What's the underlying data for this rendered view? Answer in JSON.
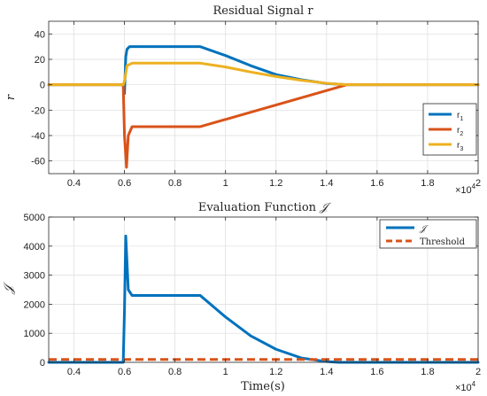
{
  "chart_data": [
    {
      "type": "line",
      "title": "Residual Signal r",
      "xlabel": "",
      "ylabel": "r",
      "xlim": [
        3000,
        20000
      ],
      "ylim": [
        -70,
        50
      ],
      "x_tick_values": [
        4000,
        6000,
        8000,
        10000,
        12000,
        14000,
        16000,
        18000,
        20000
      ],
      "x_tick_labels": [
        "0.4",
        "0.6",
        "0.8",
        "1",
        "1.2",
        "1.4",
        "1.6",
        "1.8",
        "2"
      ],
      "x_exponent_label": "×10",
      "x_exponent_power": "4",
      "y_ticks": [
        -60,
        -40,
        -20,
        0,
        20,
        40
      ],
      "grid": true,
      "legend_position": "bottom-right",
      "series": [
        {
          "name": "r",
          "subscript": "1",
          "color": "#0072BD",
          "x": [
            3000,
            5950,
            6000,
            6050,
            6100,
            6200,
            6300,
            9000,
            10000,
            11000,
            12000,
            13000,
            14000,
            14800,
            15000,
            20000
          ],
          "y": [
            0,
            0,
            -7,
            22,
            28,
            30,
            30,
            30,
            23,
            15,
            8,
            4,
            1,
            0,
            0,
            0
          ]
        },
        {
          "name": "r",
          "subscript": "2",
          "color": "#D95319",
          "x": [
            3000,
            5950,
            6000,
            6080,
            6150,
            6300,
            9000,
            14800,
            15000,
            20000
          ],
          "y": [
            0,
            0,
            -40,
            -65,
            -40,
            -33,
            -33,
            0,
            0,
            0
          ]
        },
        {
          "name": "r",
          "subscript": "3",
          "color": "#EDB120",
          "x": [
            3000,
            5950,
            6000,
            6100,
            6300,
            9000,
            10000,
            11000,
            12000,
            13000,
            14000,
            14800,
            15000,
            20000
          ],
          "y": [
            0,
            0,
            3,
            15,
            17,
            17,
            14,
            10,
            6.5,
            3.5,
            1.2,
            0,
            0,
            0
          ]
        }
      ]
    },
    {
      "type": "line",
      "title": "Evaluation Function ",
      "title_symbol": "𝒥",
      "xlabel": "Time(s)",
      "ylabel": "𝒥",
      "xlim": [
        3000,
        20000
      ],
      "ylim": [
        0,
        5000
      ],
      "x_tick_values": [
        4000,
        6000,
        8000,
        10000,
        12000,
        14000,
        16000,
        18000,
        20000
      ],
      "x_tick_labels": [
        "0.4",
        "0.6",
        "0.8",
        "1",
        "1.2",
        "1.4",
        "1.6",
        "1.8",
        "2"
      ],
      "x_exponent_label": "×10",
      "x_exponent_power": "4",
      "y_ticks": [
        0,
        1000,
        2000,
        3000,
        4000,
        5000
      ],
      "grid": true,
      "legend_position": "top-right",
      "series": [
        {
          "name": "𝒥",
          "color": "#0072BD",
          "x": [
            3000,
            5950,
            6000,
            6050,
            6150,
            6300,
            9000,
            10000,
            11000,
            12000,
            13000,
            14000,
            14500,
            15000,
            20000
          ],
          "y": [
            0,
            0,
            1800,
            4350,
            2500,
            2300,
            2300,
            1560,
            910,
            450,
            150,
            25,
            0,
            0,
            0
          ]
        },
        {
          "name": "Threshold",
          "color": "#D95319",
          "dashed": true,
          "x": [
            3000,
            20000
          ],
          "y": [
            100,
            100
          ]
        }
      ]
    }
  ]
}
